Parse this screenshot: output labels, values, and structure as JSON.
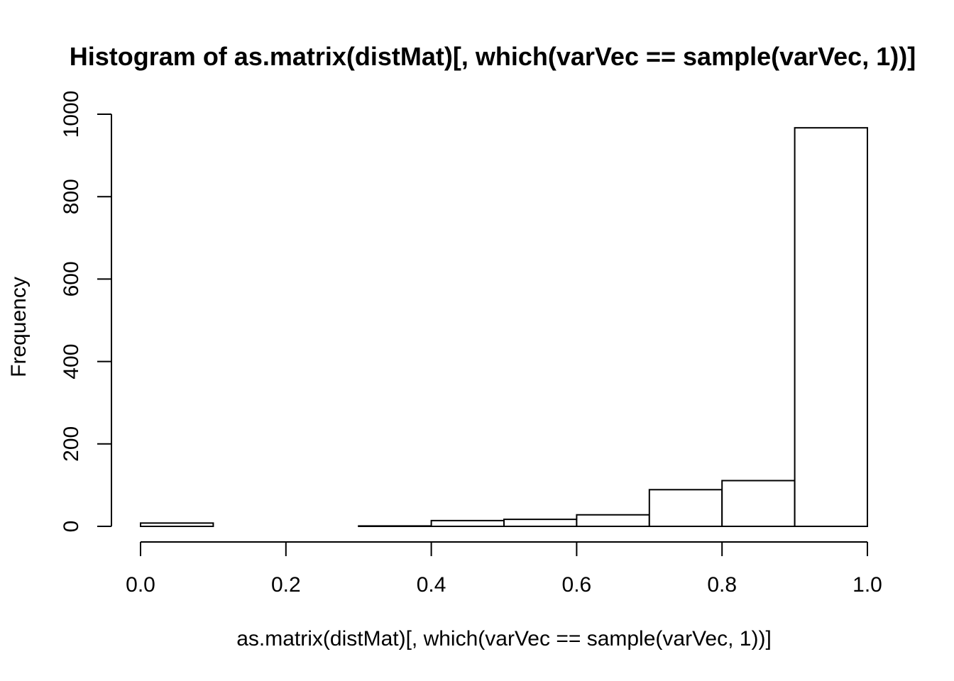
{
  "chart_data": {
    "type": "bar",
    "title": "Histogram of as.matrix(distMat)[, which(varVec == sample(varVec, 1))]",
    "xlabel": "as.matrix(distMat)[, which(varVec == sample(varVec, 1))]",
    "ylabel": "Frequency",
    "bins": [
      {
        "x0": 0.0,
        "x1": 0.1,
        "count": 8
      },
      {
        "x0": 0.1,
        "x1": 0.2,
        "count": 0
      },
      {
        "x0": 0.2,
        "x1": 0.3,
        "count": 0
      },
      {
        "x0": 0.3,
        "x1": 0.4,
        "count": 1
      },
      {
        "x0": 0.4,
        "x1": 0.5,
        "count": 14
      },
      {
        "x0": 0.5,
        "x1": 0.6,
        "count": 17
      },
      {
        "x0": 0.6,
        "x1": 0.7,
        "count": 28
      },
      {
        "x0": 0.7,
        "x1": 0.8,
        "count": 89
      },
      {
        "x0": 0.8,
        "x1": 0.9,
        "count": 111
      },
      {
        "x0": 0.9,
        "x1": 1.0,
        "count": 967
      }
    ],
    "xlim": [
      0.0,
      1.0
    ],
    "ylim": [
      0,
      1000
    ],
    "xticks": [
      "0.0",
      "0.2",
      "0.4",
      "0.6",
      "0.8",
      "1.0"
    ],
    "yticks": [
      "0",
      "200",
      "400",
      "600",
      "800",
      "1000"
    ],
    "grid": false,
    "legend": "none"
  }
}
